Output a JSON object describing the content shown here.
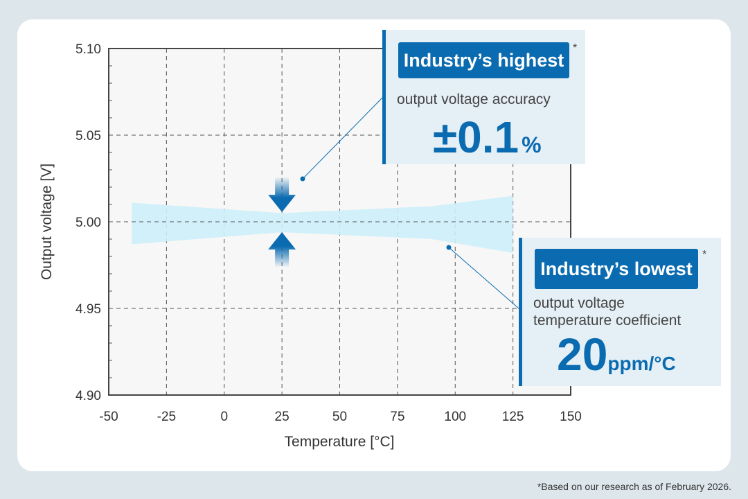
{
  "chart_data": {
    "type": "area",
    "xlabel": "Temperature [°C]",
    "ylabel": "Output voltage [V]",
    "xlim": [
      -50,
      150
    ],
    "ylim": [
      4.9,
      5.1
    ],
    "xticks": [
      "-50",
      "-25",
      "0",
      "25",
      "50",
      "75",
      "100",
      "125",
      "150"
    ],
    "yticks": [
      "5.10",
      "5.05",
      "5.00",
      "4.95",
      "4.90"
    ],
    "grid": true,
    "series": [
      {
        "name": "Output voltage range",
        "x": [
          -40,
          25,
          90,
          125
        ],
        "upper": [
          5.011,
          5.005,
          5.009,
          5.015
        ],
        "lower": [
          4.987,
          4.994,
          4.99,
          4.982
        ]
      }
    ]
  },
  "callouts": {
    "accuracy": {
      "badge": "Industry’s highest",
      "asterisk": "*",
      "text": "output voltage accuracy",
      "value": "±0.1",
      "unit": "%"
    },
    "tempco": {
      "badge": "Industry’s lowest",
      "asterisk": "*",
      "line1": "output voltage",
      "line2": "temperature coefficient",
      "value": "20",
      "unit": "ppm/°C"
    }
  },
  "footnote": "*Based on our research as of February 2026.",
  "colors": {
    "accent": "#0a6bb0",
    "band": "#cdeefa",
    "background": "#dce6eb"
  }
}
